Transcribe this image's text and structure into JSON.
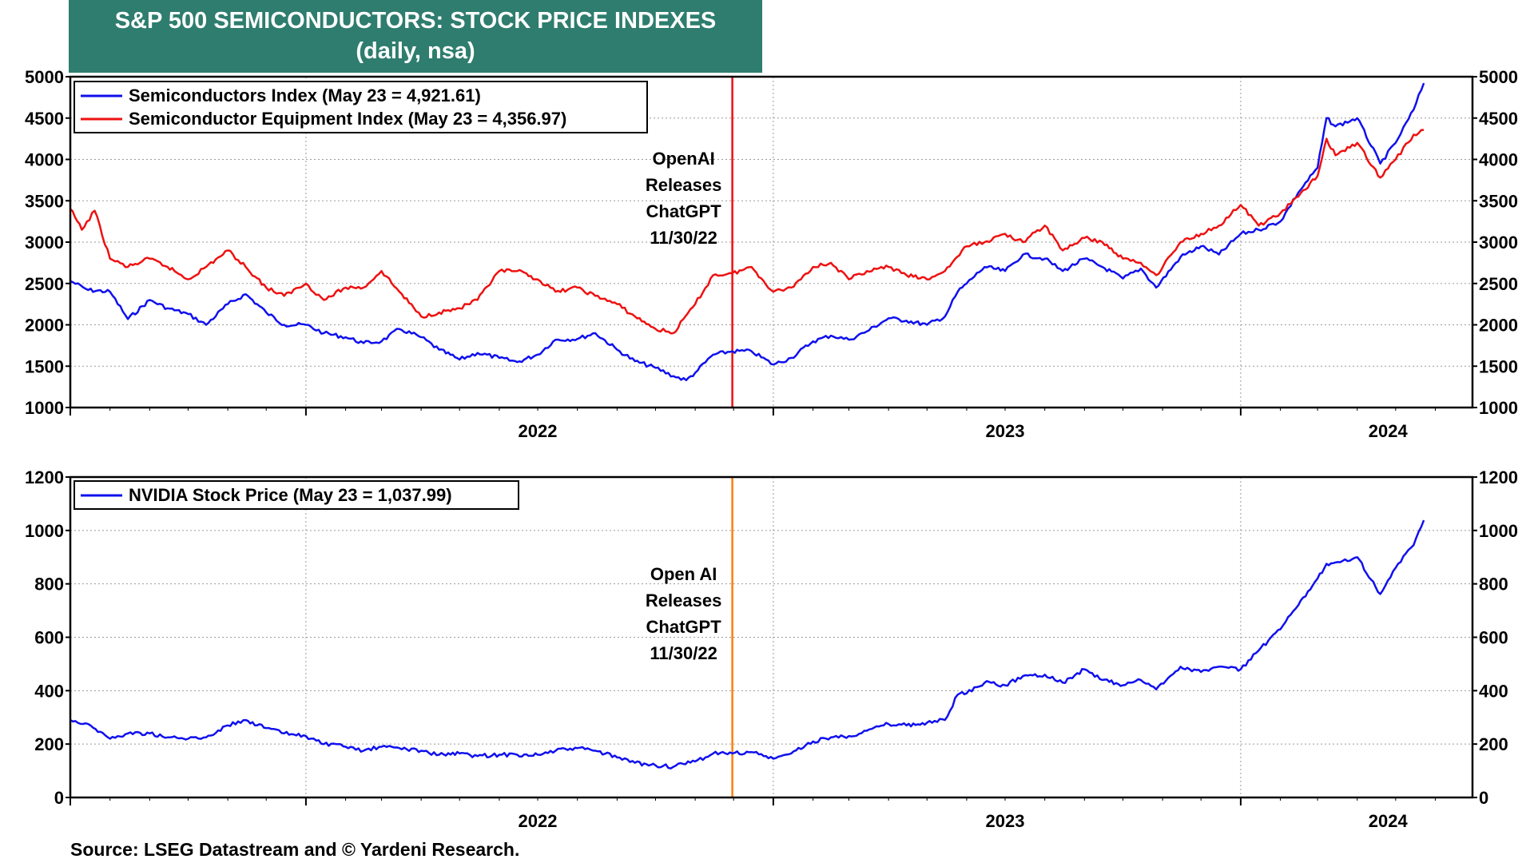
{
  "title": {
    "line1": "S&P 500 SEMICONDUCTORS: STOCK PRICE INDEXES",
    "line2": "(daily, nsa)"
  },
  "source": "Source: LSEG Datastream and © Yardeni Research.",
  "colors": {
    "blue": "#1010ee",
    "red": "#ee1111",
    "orange": "#ff7f0e",
    "title_bg": "#2e7d6e"
  },
  "chart_data": [
    {
      "type": "line",
      "x_axis": {
        "type": "date",
        "range": [
          "2021-07-01",
          "2024-06-30"
        ],
        "tick_labels": [
          "2022",
          "2023",
          "2024"
        ]
      },
      "ylim": [
        1000,
        5000
      ],
      "yticks": [
        1000,
        1500,
        2000,
        2500,
        3000,
        3500,
        4000,
        4500,
        5000
      ],
      "grid": true,
      "legend_position": "top-left",
      "annotation": {
        "date": "2022-11-30",
        "lines": [
          "OpenAI",
          "Releases",
          "ChatGPT",
          "11/30/22"
        ],
        "line_color": "#ee1111"
      },
      "series": [
        {
          "name": "Semiconductors Index (May 23 = 4,921.61)",
          "color": "#1010ee",
          "points": [
            [
              "2021-07-01",
              2530
            ],
            [
              "2021-07-15",
              2420
            ],
            [
              "2021-08-01",
              2400
            ],
            [
              "2021-08-15",
              2070
            ],
            [
              "2021-09-01",
              2300
            ],
            [
              "2021-09-15",
              2200
            ],
            [
              "2021-10-01",
              2130
            ],
            [
              "2021-10-15",
              2000
            ],
            [
              "2021-11-01",
              2250
            ],
            [
              "2021-11-15",
              2370
            ],
            [
              "2021-12-01",
              2150
            ],
            [
              "2021-12-15",
              2000
            ],
            [
              "2022-01-01",
              2000
            ],
            [
              "2022-01-15",
              1900
            ],
            [
              "2022-02-01",
              1850
            ],
            [
              "2022-02-15",
              1780
            ],
            [
              "2022-03-01",
              1800
            ],
            [
              "2022-03-15",
              1950
            ],
            [
              "2022-04-01",
              1850
            ],
            [
              "2022-04-15",
              1700
            ],
            [
              "2022-05-01",
              1580
            ],
            [
              "2022-05-15",
              1660
            ],
            [
              "2022-06-01",
              1600
            ],
            [
              "2022-06-15",
              1550
            ],
            [
              "2022-07-01",
              1640
            ],
            [
              "2022-07-15",
              1820
            ],
            [
              "2022-08-01",
              1830
            ],
            [
              "2022-08-15",
              1900
            ],
            [
              "2022-09-01",
              1700
            ],
            [
              "2022-09-15",
              1560
            ],
            [
              "2022-10-01",
              1480
            ],
            [
              "2022-10-15",
              1380
            ],
            [
              "2022-10-25",
              1330
            ],
            [
              "2022-11-01",
              1420
            ],
            [
              "2022-11-15",
              1640
            ],
            [
              "2022-11-30",
              1680
            ],
            [
              "2022-12-15",
              1680
            ],
            [
              "2023-01-01",
              1520
            ],
            [
              "2023-01-15",
              1600
            ],
            [
              "2023-02-01",
              1800
            ],
            [
              "2023-02-15",
              1870
            ],
            [
              "2023-03-01",
              1820
            ],
            [
              "2023-03-15",
              1920
            ],
            [
              "2023-04-01",
              2080
            ],
            [
              "2023-04-15",
              2050
            ],
            [
              "2023-05-01",
              2000
            ],
            [
              "2023-05-15",
              2100
            ],
            [
              "2023-05-25",
              2400
            ],
            [
              "2023-06-01",
              2500
            ],
            [
              "2023-06-15",
              2700
            ],
            [
              "2023-07-01",
              2650
            ],
            [
              "2023-07-15",
              2850
            ],
            [
              "2023-08-01",
              2800
            ],
            [
              "2023-08-15",
              2650
            ],
            [
              "2023-09-01",
              2800
            ],
            [
              "2023-09-15",
              2700
            ],
            [
              "2023-10-01",
              2560
            ],
            [
              "2023-10-15",
              2680
            ],
            [
              "2023-10-27",
              2450
            ],
            [
              "2023-11-15",
              2820
            ],
            [
              "2023-12-01",
              2950
            ],
            [
              "2023-12-15",
              2850
            ],
            [
              "2024-01-01",
              3100
            ],
            [
              "2024-01-15",
              3150
            ],
            [
              "2024-02-01",
              3250
            ],
            [
              "2024-02-15",
              3600
            ],
            [
              "2024-03-01",
              3900
            ],
            [
              "2024-03-08",
              4500
            ],
            [
              "2024-03-15",
              4400
            ],
            [
              "2024-04-01",
              4500
            ],
            [
              "2024-04-19",
              3950
            ],
            [
              "2024-05-01",
              4200
            ],
            [
              "2024-05-15",
              4600
            ],
            [
              "2024-05-23",
              4921.61
            ]
          ]
        },
        {
          "name": "Semiconductor Equipment Index (May 23 = 4,356.97)",
          "color": "#ee1111",
          "points": [
            [
              "2021-07-01",
              3400
            ],
            [
              "2021-07-10",
              3150
            ],
            [
              "2021-07-20",
              3380
            ],
            [
              "2021-08-01",
              2800
            ],
            [
              "2021-08-15",
              2700
            ],
            [
              "2021-09-01",
              2800
            ],
            [
              "2021-09-15",
              2700
            ],
            [
              "2021-10-01",
              2550
            ],
            [
              "2021-10-15",
              2700
            ],
            [
              "2021-11-01",
              2900
            ],
            [
              "2021-11-15",
              2700
            ],
            [
              "2021-12-01",
              2450
            ],
            [
              "2021-12-15",
              2350
            ],
            [
              "2022-01-01",
              2500
            ],
            [
              "2022-01-15",
              2300
            ],
            [
              "2022-02-01",
              2450
            ],
            [
              "2022-02-15",
              2450
            ],
            [
              "2022-03-01",
              2650
            ],
            [
              "2022-03-15",
              2400
            ],
            [
              "2022-04-01",
              2100
            ],
            [
              "2022-04-15",
              2150
            ],
            [
              "2022-05-01",
              2200
            ],
            [
              "2022-05-15",
              2300
            ],
            [
              "2022-06-01",
              2650
            ],
            [
              "2022-06-15",
              2650
            ],
            [
              "2022-07-01",
              2550
            ],
            [
              "2022-07-15",
              2400
            ],
            [
              "2022-08-01",
              2450
            ],
            [
              "2022-08-15",
              2350
            ],
            [
              "2022-09-01",
              2250
            ],
            [
              "2022-09-15",
              2100
            ],
            [
              "2022-10-01",
              1950
            ],
            [
              "2022-10-15",
              1900
            ],
            [
              "2022-11-01",
              2250
            ],
            [
              "2022-11-15",
              2600
            ],
            [
              "2022-11-30",
              2620
            ],
            [
              "2022-12-15",
              2700
            ],
            [
              "2023-01-01",
              2400
            ],
            [
              "2023-01-15",
              2450
            ],
            [
              "2023-02-01",
              2700
            ],
            [
              "2023-02-15",
              2750
            ],
            [
              "2023-03-01",
              2550
            ],
            [
              "2023-03-15",
              2650
            ],
            [
              "2023-04-01",
              2700
            ],
            [
              "2023-04-15",
              2600
            ],
            [
              "2023-05-01",
              2550
            ],
            [
              "2023-05-15",
              2650
            ],
            [
              "2023-06-01",
              2950
            ],
            [
              "2023-06-15",
              3000
            ],
            [
              "2023-07-01",
              3100
            ],
            [
              "2023-07-15",
              3000
            ],
            [
              "2023-08-01",
              3200
            ],
            [
              "2023-08-15",
              2900
            ],
            [
              "2023-09-01",
              3050
            ],
            [
              "2023-09-15",
              3000
            ],
            [
              "2023-10-01",
              2800
            ],
            [
              "2023-10-15",
              2750
            ],
            [
              "2023-10-27",
              2600
            ],
            [
              "2023-11-15",
              3000
            ],
            [
              "2023-12-01",
              3100
            ],
            [
              "2023-12-15",
              3200
            ],
            [
              "2024-01-01",
              3450
            ],
            [
              "2024-01-15",
              3200
            ],
            [
              "2024-02-01",
              3350
            ],
            [
              "2024-02-15",
              3550
            ],
            [
              "2024-03-01",
              3800
            ],
            [
              "2024-03-08",
              4250
            ],
            [
              "2024-03-15",
              4050
            ],
            [
              "2024-04-01",
              4200
            ],
            [
              "2024-04-19",
              3780
            ],
            [
              "2024-05-01",
              4000
            ],
            [
              "2024-05-15",
              4300
            ],
            [
              "2024-05-23",
              4356.97
            ]
          ]
        }
      ]
    },
    {
      "type": "line",
      "x_axis": {
        "type": "date",
        "range": [
          "2021-07-01",
          "2024-06-30"
        ],
        "tick_labels": [
          "2022",
          "2023",
          "2024"
        ]
      },
      "ylim": [
        0,
        1200
      ],
      "yticks": [
        0,
        200,
        400,
        600,
        800,
        1000,
        1200
      ],
      "grid": true,
      "legend_position": "top-left",
      "annotation": {
        "date": "2022-11-30",
        "lines": [
          "Open AI",
          "Releases",
          "ChatGPT",
          "11/30/22"
        ],
        "line_color": "#ff7f0e"
      },
      "series": [
        {
          "name": "NVIDIA Stock Price (May 23 = 1,037.99)",
          "color": "#1010ee",
          "points": [
            [
              "2021-07-01",
              290
            ],
            [
              "2021-07-15",
              275
            ],
            [
              "2021-08-01",
              220
            ],
            [
              "2021-08-15",
              240
            ],
            [
              "2021-09-01",
              240
            ],
            [
              "2021-09-15",
              225
            ],
            [
              "2021-10-01",
              220
            ],
            [
              "2021-10-15",
              225
            ],
            [
              "2021-11-01",
              270
            ],
            [
              "2021-11-15",
              290
            ],
            [
              "2021-12-01",
              260
            ],
            [
              "2021-12-15",
              240
            ],
            [
              "2022-01-01",
              230
            ],
            [
              "2022-01-15",
              200
            ],
            [
              "2022-02-01",
              190
            ],
            [
              "2022-02-15",
              175
            ],
            [
              "2022-03-01",
              190
            ],
            [
              "2022-03-15",
              185
            ],
            [
              "2022-04-01",
              175
            ],
            [
              "2022-04-15",
              160
            ],
            [
              "2022-05-01",
              165
            ],
            [
              "2022-05-15",
              155
            ],
            [
              "2022-06-01",
              160
            ],
            [
              "2022-06-15",
              160
            ],
            [
              "2022-07-01",
              160
            ],
            [
              "2022-07-15",
              175
            ],
            [
              "2022-08-01",
              185
            ],
            [
              "2022-08-15",
              175
            ],
            [
              "2022-09-01",
              150
            ],
            [
              "2022-09-15",
              130
            ],
            [
              "2022-10-01",
              120
            ],
            [
              "2022-10-15",
              115
            ],
            [
              "2022-11-01",
              135
            ],
            [
              "2022-11-15",
              165
            ],
            [
              "2022-11-30",
              165
            ],
            [
              "2022-12-15",
              170
            ],
            [
              "2023-01-01",
              145
            ],
            [
              "2023-01-15",
              165
            ],
            [
              "2023-02-01",
              210
            ],
            [
              "2023-02-15",
              225
            ],
            [
              "2023-03-01",
              230
            ],
            [
              "2023-03-15",
              250
            ],
            [
              "2023-04-01",
              275
            ],
            [
              "2023-04-15",
              270
            ],
            [
              "2023-05-01",
              280
            ],
            [
              "2023-05-15",
              290
            ],
            [
              "2023-05-25",
              385
            ],
            [
              "2023-06-01",
              390
            ],
            [
              "2023-06-15",
              430
            ],
            [
              "2023-07-01",
              420
            ],
            [
              "2023-07-15",
              455
            ],
            [
              "2023-08-01",
              460
            ],
            [
              "2023-08-15",
              430
            ],
            [
              "2023-09-01",
              480
            ],
            [
              "2023-09-15",
              440
            ],
            [
              "2023-10-01",
              420
            ],
            [
              "2023-10-15",
              440
            ],
            [
              "2023-10-27",
              405
            ],
            [
              "2023-11-15",
              490
            ],
            [
              "2023-12-01",
              470
            ],
            [
              "2023-12-15",
              490
            ],
            [
              "2024-01-01",
              480
            ],
            [
              "2024-01-15",
              550
            ],
            [
              "2024-02-01",
              630
            ],
            [
              "2024-02-15",
              720
            ],
            [
              "2024-03-01",
              820
            ],
            [
              "2024-03-08",
              875
            ],
            [
              "2024-03-15",
              880
            ],
            [
              "2024-04-01",
              900
            ],
            [
              "2024-04-19",
              762
            ],
            [
              "2024-05-01",
              860
            ],
            [
              "2024-05-15",
              945
            ],
            [
              "2024-05-23",
              1037.99
            ]
          ]
        }
      ]
    }
  ]
}
